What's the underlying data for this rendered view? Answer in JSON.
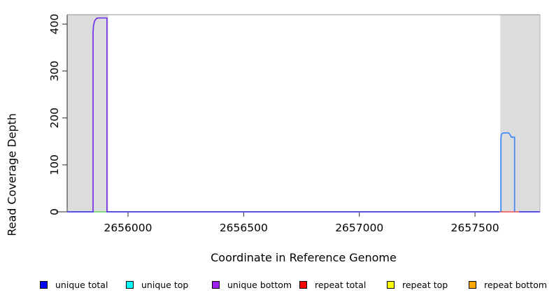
{
  "figure": {
    "xlabel": "Coordinate in Reference Genome",
    "ylabel": "Read Coverage Depth"
  },
  "chart_data": {
    "type": "line",
    "title": "",
    "xlabel": "Coordinate in Reference Genome",
    "ylabel": "Read Coverage Depth",
    "xlim": [
      2655737,
      2657781
    ],
    "ylim": [
      0,
      420
    ],
    "x_ticks": [
      2656000,
      2656500,
      2657000,
      2657500
    ],
    "y_ticks": [
      0,
      100,
      200,
      300,
      400
    ],
    "grid": false,
    "legend_position": "bottom",
    "colors": {
      "shaded_region": "#dcdcdc",
      "box_top": "#909090",
      "box_right": "#b8b8b8",
      "axis_line": "#2a2a2a",
      "tick": "#2a2a2a"
    },
    "background_shading": {
      "color": "#dcdcdc",
      "regions": [
        {
          "x0": 2655737,
          "x1": 2655915
        },
        {
          "x0": 2657609,
          "x1": 2657781
        }
      ]
    },
    "legend": [
      {
        "label": "unique total",
        "color": "#0000ff"
      },
      {
        "label": "unique top",
        "color": "#00ffff"
      },
      {
        "label": "unique bottom",
        "color": "#a020f0"
      },
      {
        "label": "repeat total",
        "color": "#ff0000"
      },
      {
        "label": "repeat top",
        "color": "#ffff00"
      },
      {
        "label": "repeat bottom",
        "color": "#ffa500"
      }
    ],
    "series": [
      {
        "name": "baseline-zero-coverage",
        "color": "#5b50e6",
        "width": 2,
        "points": [
          [
            2655737,
            0
          ],
          [
            2657781,
            0
          ]
        ]
      },
      {
        "name": "baseline-segment-green-under-left-peak",
        "color": "#82d982",
        "width": 2,
        "points": [
          [
            2655852,
            0
          ],
          [
            2655906,
            0
          ]
        ]
      },
      {
        "name": "baseline-segment-red-under-right-peak",
        "color": "#f17070",
        "width": 2,
        "points": [
          [
            2657607,
            0
          ],
          [
            2657690,
            0
          ]
        ]
      },
      {
        "name": "unique-coverage-left-peak",
        "color": "#7232e8",
        "width": 1.7,
        "points": [
          [
            2655849,
            0
          ],
          [
            2655849,
            383
          ],
          [
            2655851,
            397
          ],
          [
            2655856,
            407
          ],
          [
            2655864,
            412
          ],
          [
            2655872,
            413
          ],
          [
            2655909,
            413
          ],
          [
            2655909,
            0
          ]
        ]
      },
      {
        "name": "unique-coverage-right-peak",
        "color": "#3f86f4",
        "width": 1.7,
        "points": [
          [
            2657612,
            0
          ],
          [
            2657612,
            157
          ],
          [
            2657614,
            165
          ],
          [
            2657621,
            168
          ],
          [
            2657646,
            168
          ],
          [
            2657653,
            163
          ],
          [
            2657657,
            159
          ],
          [
            2657671,
            159
          ],
          [
            2657671,
            0
          ]
        ]
      }
    ]
  }
}
